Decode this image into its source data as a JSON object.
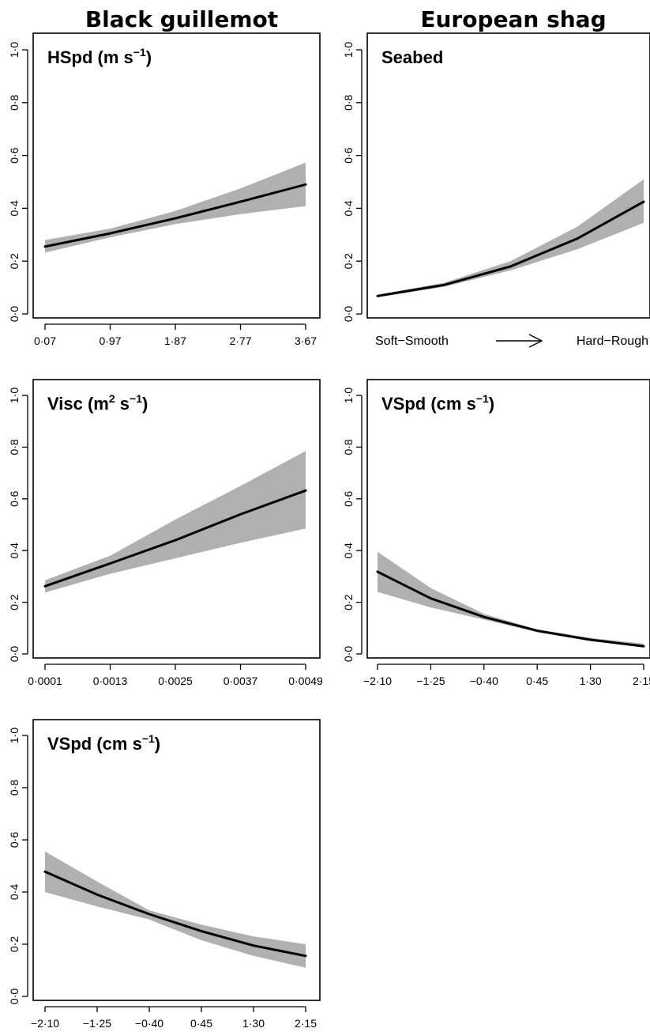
{
  "columns": {
    "left": "Black guillemot",
    "right": "European shag"
  },
  "chart_data": [
    {
      "id": "bg-hspd",
      "type": "line",
      "column": "left",
      "row": 0,
      "title_main": "HSpd (m s",
      "title_sup": "−1",
      "title_close": ")",
      "ylim": [
        0,
        1
      ],
      "yticks": [
        "0·0",
        "0·2",
        "0·4",
        "0·6",
        "0·8",
        "1·0"
      ],
      "xtick_values": [
        0.07,
        0.97,
        1.87,
        2.77,
        3.67
      ],
      "xticks": [
        "0·07",
        "0·97",
        "1·87",
        "2·77",
        "3·67"
      ],
      "xlabel": "",
      "ylabel": "",
      "series": [
        {
          "x": [
            0.07,
            0.97,
            1.87,
            2.77,
            3.67
          ],
          "y": [
            0.255,
            0.305,
            0.362,
            0.425,
            0.49
          ],
          "lower": [
            0.232,
            0.29,
            0.34,
            0.378,
            0.408
          ],
          "upper": [
            0.28,
            0.323,
            0.39,
            0.475,
            0.573
          ]
        }
      ]
    },
    {
      "id": "es-seabed",
      "type": "line",
      "column": "right",
      "row": 0,
      "title_main": "Seabed",
      "title_sup": "",
      "title_close": "",
      "ylim": [
        0,
        1
      ],
      "yticks": [
        "0·0",
        "0·2",
        "0·4",
        "0·6",
        "0·8",
        "1·0"
      ],
      "xtick_values": [],
      "xticks": [],
      "xaxis_text_left": "Soft−Smooth",
      "xaxis_text_right": "Hard−Rough",
      "xlabel": "",
      "ylabel": "",
      "series": [
        {
          "x": [
            0,
            0.25,
            0.5,
            0.75,
            1
          ],
          "y": [
            0.068,
            0.11,
            0.18,
            0.285,
            0.425
          ],
          "lower": [
            0.063,
            0.103,
            0.165,
            0.245,
            0.345
          ],
          "upper": [
            0.073,
            0.118,
            0.2,
            0.33,
            0.51
          ]
        }
      ]
    },
    {
      "id": "bg-visc",
      "type": "line",
      "column": "left",
      "row": 1,
      "title_main": "Visc (m",
      "title_sup": "2",
      "title_mid": " s",
      "title_sup2": "−1",
      "title_close": ")",
      "ylim": [
        0,
        1
      ],
      "yticks": [
        "0·0",
        "0·2",
        "0·4",
        "0·6",
        "0·8",
        "1·0"
      ],
      "xtick_values": [
        0.0001,
        0.0013,
        0.0025,
        0.0037,
        0.0049
      ],
      "xticks": [
        "0·0001",
        "0·0013",
        "0·0025",
        "0·0037",
        "0·0049"
      ],
      "xlabel": "",
      "ylabel": "",
      "series": [
        {
          "x": [
            0.0001,
            0.0013,
            0.0025,
            0.0037,
            0.0049
          ],
          "y": [
            0.262,
            0.35,
            0.44,
            0.54,
            0.632
          ],
          "lower": [
            0.238,
            0.31,
            0.37,
            0.43,
            0.485
          ],
          "upper": [
            0.285,
            0.38,
            0.52,
            0.65,
            0.785
          ]
        }
      ]
    },
    {
      "id": "es-vspd",
      "type": "line",
      "column": "right",
      "row": 1,
      "title_main": "VSpd (cm s",
      "title_sup": "−1",
      "title_close": ")",
      "ylim": [
        0,
        1
      ],
      "yticks": [
        "0·0",
        "0·2",
        "0·4",
        "0·6",
        "0·8",
        "1·0"
      ],
      "xtick_values": [
        -2.1,
        -1.25,
        -0.4,
        0.45,
        1.3,
        2.15
      ],
      "xticks": [
        "−2·10",
        "−1·25",
        "−0·40",
        "0·45",
        "1·30",
        "2·15"
      ],
      "xlabel": "",
      "ylabel": "",
      "series": [
        {
          "x": [
            -2.1,
            -1.25,
            -0.4,
            0.45,
            1.3,
            2.15
          ],
          "y": [
            0.318,
            0.215,
            0.143,
            0.09,
            0.055,
            0.03
          ],
          "lower": [
            0.24,
            0.18,
            0.133,
            0.085,
            0.05,
            0.026
          ],
          "upper": [
            0.395,
            0.255,
            0.155,
            0.095,
            0.062,
            0.04
          ]
        }
      ]
    },
    {
      "id": "bg-vspd",
      "type": "line",
      "column": "left",
      "row": 2,
      "title_main": "VSpd (cm s",
      "title_sup": "−1",
      "title_close": ")",
      "ylim": [
        0,
        1
      ],
      "yticks": [
        "0·0",
        "0·2",
        "0·4",
        "0·6",
        "0·8",
        "1·0"
      ],
      "xtick_values": [
        -2.1,
        -1.25,
        -0.4,
        0.45,
        1.3,
        2.15
      ],
      "xticks": [
        "−2·10",
        "−1·25",
        "−0·40",
        "0·45",
        "1·30",
        "2·15"
      ],
      "xlabel": "",
      "ylabel": "",
      "series": [
        {
          "x": [
            -2.1,
            -1.25,
            -0.4,
            0.45,
            1.3,
            2.15
          ],
          "y": [
            0.478,
            0.39,
            0.315,
            0.25,
            0.195,
            0.155
          ],
          "lower": [
            0.4,
            0.345,
            0.295,
            0.215,
            0.155,
            0.11
          ],
          "upper": [
            0.555,
            0.44,
            0.33,
            0.275,
            0.23,
            0.2
          ]
        }
      ]
    }
  ],
  "colors": {
    "line": "#000000",
    "band": "#b0b0b0",
    "frame": "#000000"
  }
}
